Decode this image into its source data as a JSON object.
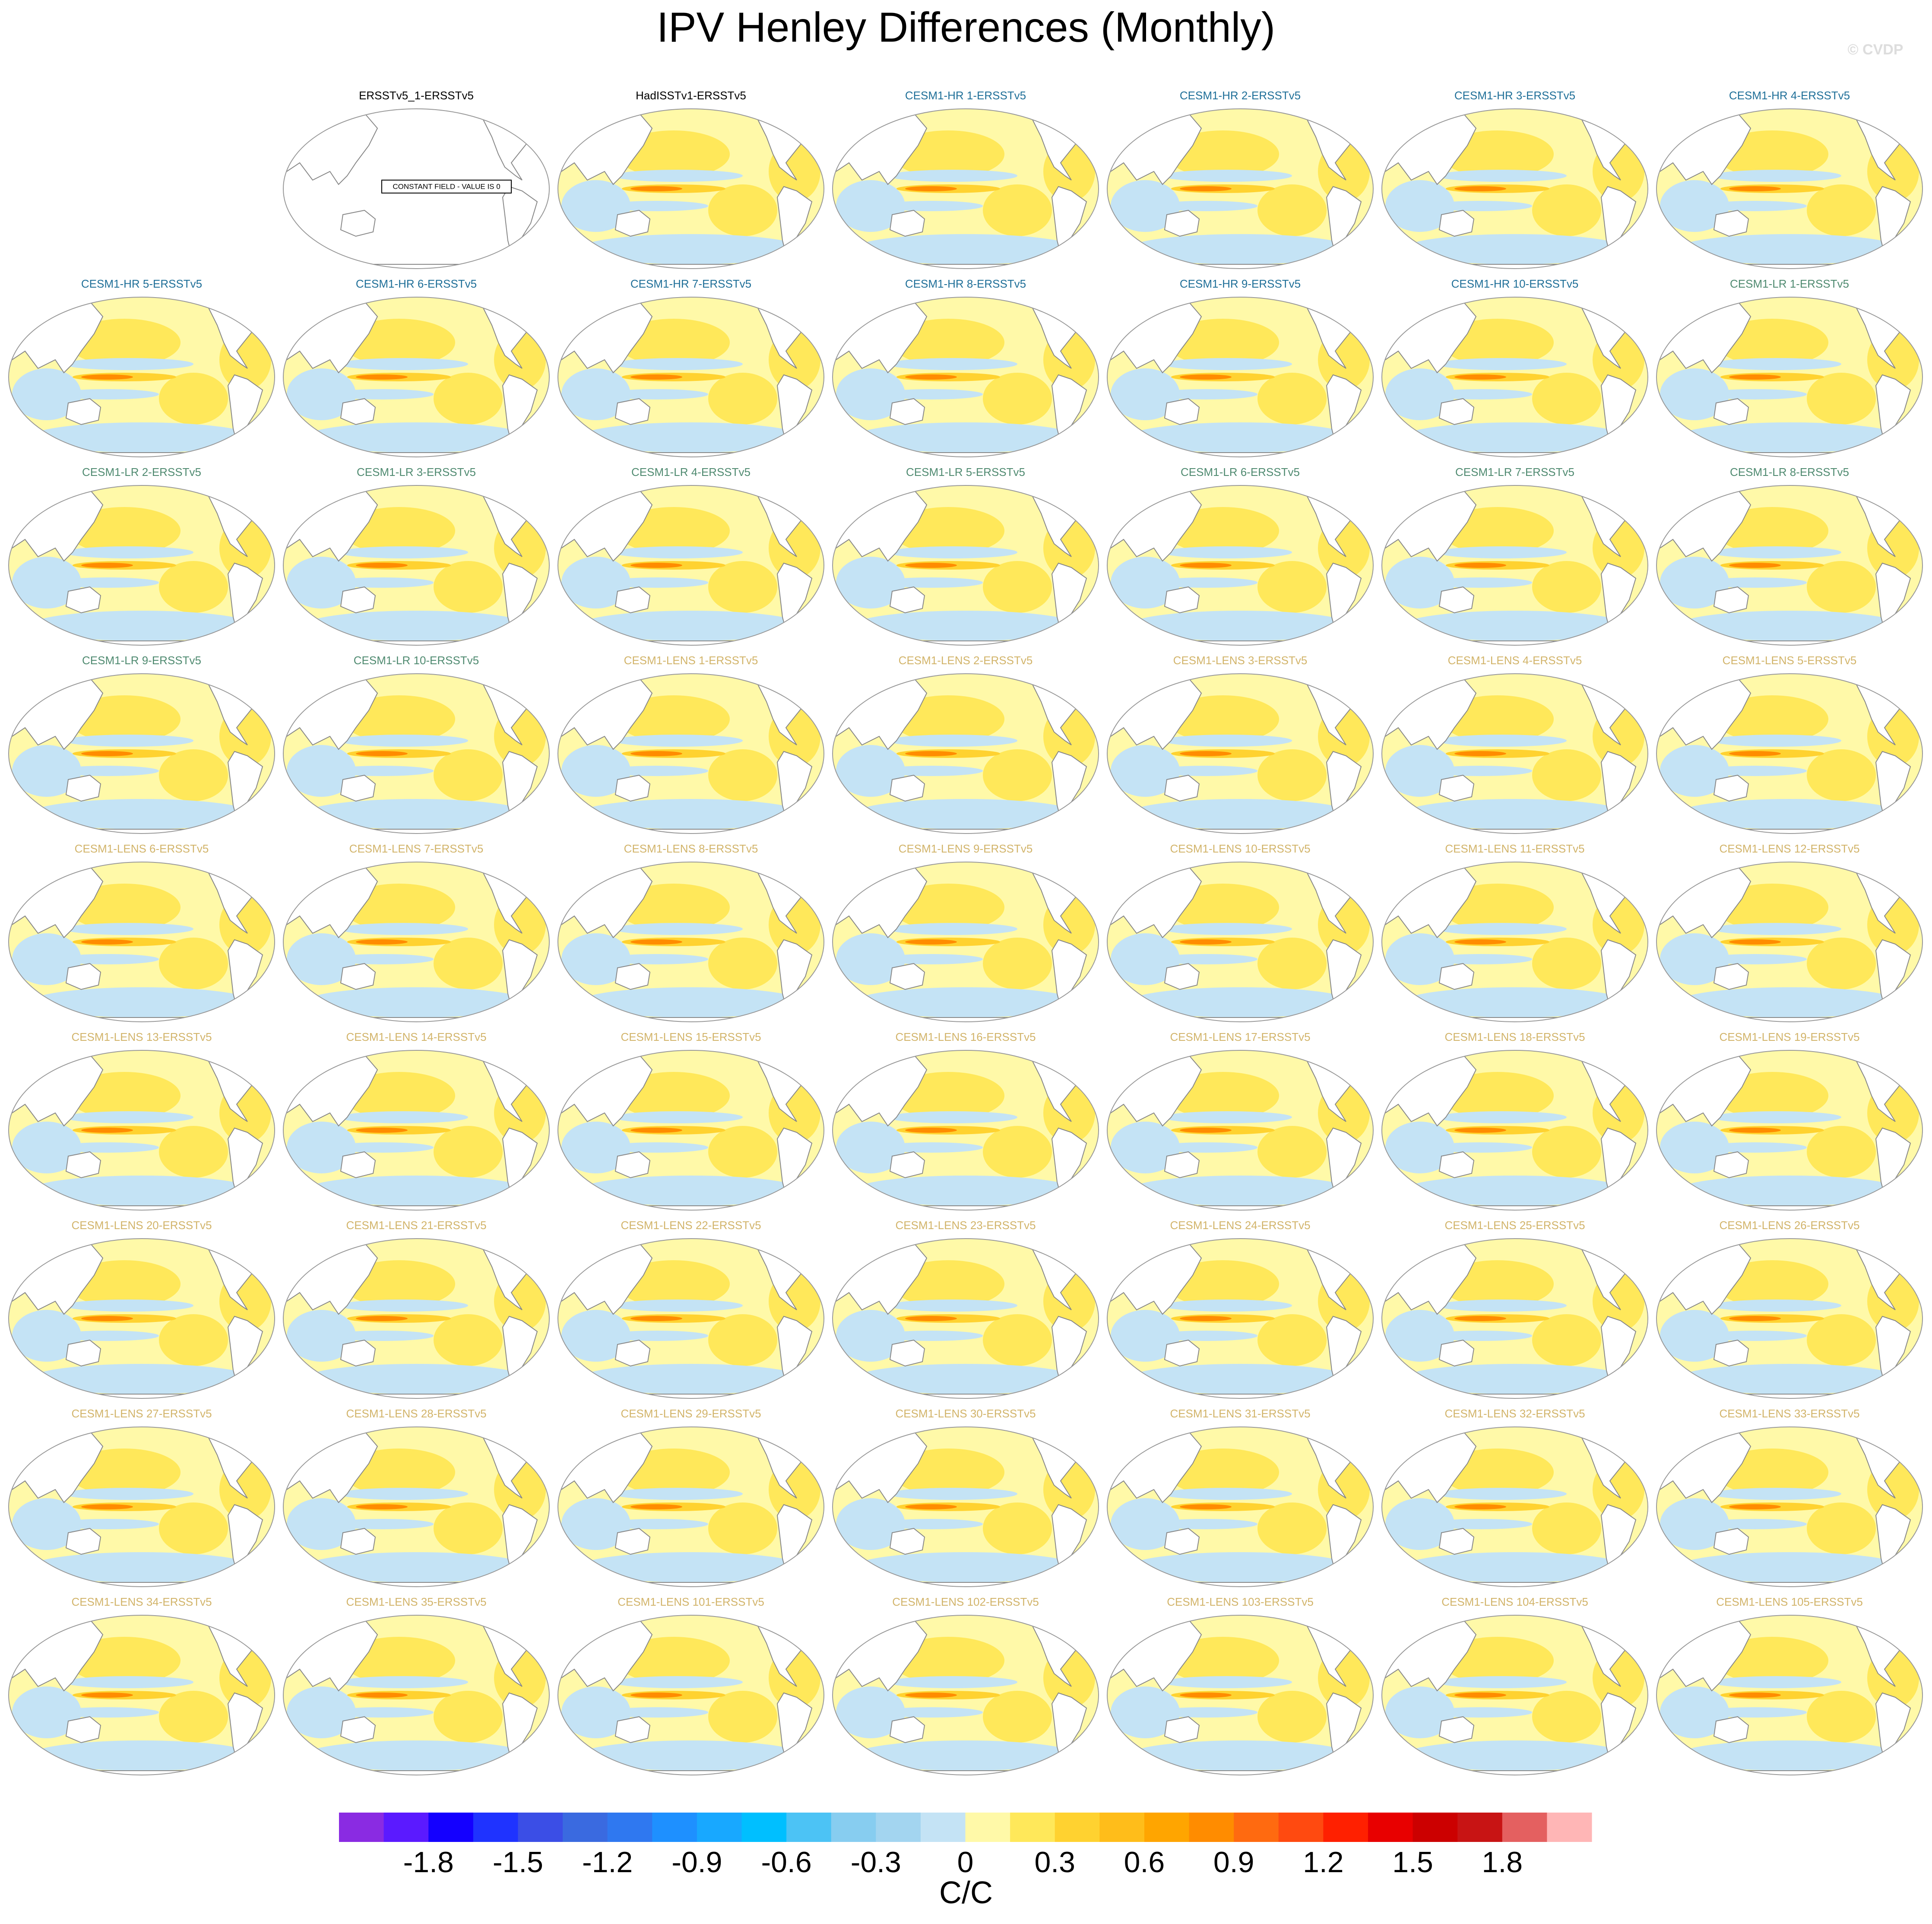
{
  "title": "IPV Henley Differences (Monthly)",
  "watermark": "© CVDP",
  "panels": [
    {
      "title": "ERSSTv5_1-ERSSTv5",
      "color": "#000000",
      "note": "CONSTANT FIELD - VALUE IS 0"
    },
    {
      "title": "HadISSTv1-ERSSTv5",
      "color": "#000000"
    },
    {
      "title": "CESM1-HR 1-ERSSTv5",
      "color": "#1f6f98"
    },
    {
      "title": "CESM1-HR 2-ERSSTv5",
      "color": "#1f6f98"
    },
    {
      "title": "CESM1-HR 3-ERSSTv5",
      "color": "#1f6f98"
    },
    {
      "title": "CESM1-HR 4-ERSSTv5",
      "color": "#1f6f98"
    },
    {
      "title": "CESM1-HR 5-ERSSTv5",
      "color": "#1f6f98"
    },
    {
      "title": "CESM1-HR 6-ERSSTv5",
      "color": "#1f6f98"
    },
    {
      "title": "CESM1-HR 7-ERSSTv5",
      "color": "#1f6f98"
    },
    {
      "title": "CESM1-HR 8-ERSSTv5",
      "color": "#1f6f98"
    },
    {
      "title": "CESM1-HR 9-ERSSTv5",
      "color": "#1f6f98"
    },
    {
      "title": "CESM1-HR 10-ERSSTv5",
      "color": "#1f6f98"
    },
    {
      "title": "CESM1-LR 1-ERSSTv5",
      "color": "#4f8a70"
    },
    {
      "title": "CESM1-LR 2-ERSSTv5",
      "color": "#4f8a70"
    },
    {
      "title": "CESM1-LR 3-ERSSTv5",
      "color": "#4f8a70"
    },
    {
      "title": "CESM1-LR 4-ERSSTv5",
      "color": "#4f8a70"
    },
    {
      "title": "CESM1-LR 5-ERSSTv5",
      "color": "#4f8a70"
    },
    {
      "title": "CESM1-LR 6-ERSSTv5",
      "color": "#4f8a70"
    },
    {
      "title": "CESM1-LR 7-ERSSTv5",
      "color": "#4f8a70"
    },
    {
      "title": "CESM1-LR 8-ERSSTv5",
      "color": "#4f8a70"
    },
    {
      "title": "CESM1-LR 9-ERSSTv5",
      "color": "#4f8a70"
    },
    {
      "title": "CESM1-LR 10-ERSSTv5",
      "color": "#4f8a70"
    },
    {
      "title": "CESM1-LENS 1-ERSSTv5",
      "color": "#d2b46a"
    },
    {
      "title": "CESM1-LENS 2-ERSSTv5",
      "color": "#d2b46a"
    },
    {
      "title": "CESM1-LENS 3-ERSSTv5",
      "color": "#d2b46a"
    },
    {
      "title": "CESM1-LENS 4-ERSSTv5",
      "color": "#d2b46a"
    },
    {
      "title": "CESM1-LENS 5-ERSSTv5",
      "color": "#d2b46a"
    },
    {
      "title": "CESM1-LENS 6-ERSSTv5",
      "color": "#d2b46a"
    },
    {
      "title": "CESM1-LENS 7-ERSSTv5",
      "color": "#d2b46a"
    },
    {
      "title": "CESM1-LENS 8-ERSSTv5",
      "color": "#d2b46a"
    },
    {
      "title": "CESM1-LENS 9-ERSSTv5",
      "color": "#d2b46a"
    },
    {
      "title": "CESM1-LENS 10-ERSSTv5",
      "color": "#d2b46a"
    },
    {
      "title": "CESM1-LENS 11-ERSSTv5",
      "color": "#d2b46a"
    },
    {
      "title": "CESM1-LENS 12-ERSSTv5",
      "color": "#d2b46a"
    },
    {
      "title": "CESM1-LENS 13-ERSSTv5",
      "color": "#d2b46a"
    },
    {
      "title": "CESM1-LENS 14-ERSSTv5",
      "color": "#d2b46a"
    },
    {
      "title": "CESM1-LENS 15-ERSSTv5",
      "color": "#d2b46a"
    },
    {
      "title": "CESM1-LENS 16-ERSSTv5",
      "color": "#d2b46a"
    },
    {
      "title": "CESM1-LENS 17-ERSSTv5",
      "color": "#d2b46a"
    },
    {
      "title": "CESM1-LENS 18-ERSSTv5",
      "color": "#d2b46a"
    },
    {
      "title": "CESM1-LENS 19-ERSSTv5",
      "color": "#d2b46a"
    },
    {
      "title": "CESM1-LENS 20-ERSSTv5",
      "color": "#d2b46a"
    },
    {
      "title": "CESM1-LENS 21-ERSSTv5",
      "color": "#d2b46a"
    },
    {
      "title": "CESM1-LENS 22-ERSSTv5",
      "color": "#d2b46a"
    },
    {
      "title": "CESM1-LENS 23-ERSSTv5",
      "color": "#d2b46a"
    },
    {
      "title": "CESM1-LENS 24-ERSSTv5",
      "color": "#d2b46a"
    },
    {
      "title": "CESM1-LENS 25-ERSSTv5",
      "color": "#d2b46a"
    },
    {
      "title": "CESM1-LENS 26-ERSSTv5",
      "color": "#d2b46a"
    },
    {
      "title": "CESM1-LENS 27-ERSSTv5",
      "color": "#d2b46a"
    },
    {
      "title": "CESM1-LENS 28-ERSSTv5",
      "color": "#d2b46a"
    },
    {
      "title": "CESM1-LENS 29-ERSSTv5",
      "color": "#d2b46a"
    },
    {
      "title": "CESM1-LENS 30-ERSSTv5",
      "color": "#d2b46a"
    },
    {
      "title": "CESM1-LENS 31-ERSSTv5",
      "color": "#d2b46a"
    },
    {
      "title": "CESM1-LENS 32-ERSSTv5",
      "color": "#d2b46a"
    },
    {
      "title": "CESM1-LENS 33-ERSSTv5",
      "color": "#d2b46a"
    },
    {
      "title": "CESM1-LENS 34-ERSSTv5",
      "color": "#d2b46a"
    },
    {
      "title": "CESM1-LENS 35-ERSSTv5",
      "color": "#d2b46a"
    },
    {
      "title": "CESM1-LENS 101-ERSSTv5",
      "color": "#d2b46a"
    },
    {
      "title": "CESM1-LENS 102-ERSSTv5",
      "color": "#d2b46a"
    },
    {
      "title": "CESM1-LENS 103-ERSSTv5",
      "color": "#d2b46a"
    },
    {
      "title": "CESM1-LENS 104-ERSSTv5",
      "color": "#d2b46a"
    },
    {
      "title": "CESM1-LENS 105-ERSSTv5",
      "color": "#d2b46a"
    }
  ],
  "colorbar": {
    "label": "C/C",
    "lim": [
      -2.1,
      2.1
    ],
    "ticks": [
      -1.8,
      -1.5,
      -1.2,
      -0.9,
      -0.6,
      -0.3,
      0,
      0.3,
      0.6,
      0.9,
      1.2,
      1.5,
      1.8
    ],
    "colors": [
      "#8a2be2",
      "#5b1aff",
      "#1400ff",
      "#1f33ff",
      "#3b4ee6",
      "#3a6ae0",
      "#2f78f0",
      "#1e90ff",
      "#18a8ff",
      "#00bfff",
      "#4cc3f5",
      "#87cdf0",
      "#a3d5f0",
      "#c4e3f5",
      "#fff9a8",
      "#ffe85a",
      "#ffd230",
      "#ffbd1a",
      "#ffa500",
      "#ff8c00",
      "#ff6a10",
      "#ff4a10",
      "#ff2000",
      "#e80000",
      "#cc0000",
      "#c81414",
      "#e46060",
      "#ffb6b6"
    ]
  }
}
